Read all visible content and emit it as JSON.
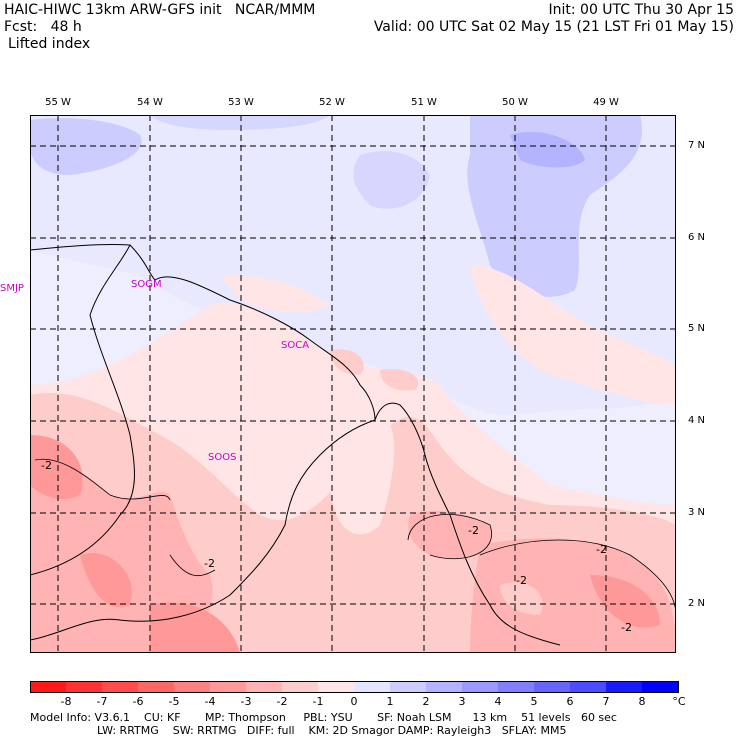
{
  "header": {
    "model_title": "HAIC-HIWC 13km ARW-GFS init   NCAR/MMM",
    "init": "Init: 00 UTC Thu 30 Apr 15",
    "fcst": "Fcst:   48 h",
    "valid": "Valid: 00 UTC Sat 02 May 15 (21 LST Fri 01 May 15)",
    "field": "Lifted index"
  },
  "map": {
    "lon_labels": [
      "55 W",
      "54 W",
      "53 W",
      "52 W",
      "51 W",
      "50 W",
      "49 W"
    ],
    "lat_labels": [
      "7 N",
      "6 N",
      "5 N",
      "4 N",
      "3 N",
      "2 N"
    ],
    "stations": [
      "SMJP",
      "SOGM",
      "SOCA",
      "SOOS"
    ],
    "contour_labels": [
      "-2",
      "-2",
      "-2",
      "-2",
      "-2",
      "-2",
      "-2"
    ]
  },
  "colorbar": {
    "labels": [
      "-8",
      "-7",
      "-6",
      "-5",
      "-4",
      "-3",
      "-2",
      "-1",
      "0",
      "1",
      "2",
      "3",
      "4",
      "5",
      "6",
      "7",
      "8"
    ],
    "unit": "°C",
    "colors": [
      "#ff1919",
      "#ff3333",
      "#ff4d4d",
      "#ff6666",
      "#ff8080",
      "#ff9999",
      "#ffb3b3",
      "#ffcccc",
      "#ffe5e5",
      "#e5e5ff",
      "#ccccff",
      "#b3b3ff",
      "#9999ff",
      "#8080ff",
      "#6666ff",
      "#4d4dff",
      "#1a1aff",
      "#0000ff"
    ]
  },
  "footer": {
    "line1": "Model Info: V3.6.1    CU: KF       MP: Thompson     PBL: YSU       SF: Noah LSM      13 km    51 levels   60 sec",
    "line2": "LW: RRTMG    SW: RRTMG   DIFF: full    KM: 2D Smagor DAMP: Rayleigh3   SFLAY: MM5"
  }
}
